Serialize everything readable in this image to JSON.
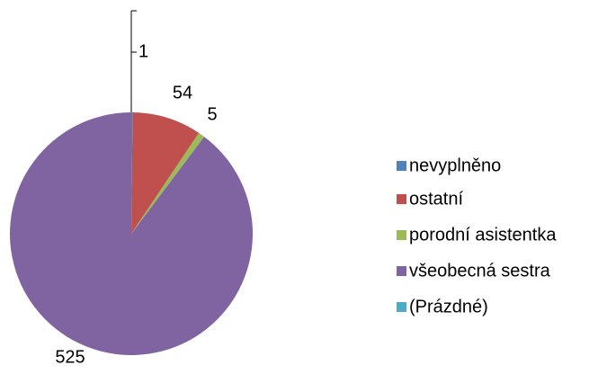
{
  "chart_data": {
    "type": "pie",
    "categories": [
      "nevyplněno",
      "ostatní",
      "porodní asistentka",
      "všeobecná sestra",
      "(Prázdné)"
    ],
    "values": [
      1,
      54,
      5,
      525,
      null
    ],
    "colors": [
      "#4f81bd",
      "#c0504d",
      "#9bbb59",
      "#8064a2",
      "#4bacc6"
    ],
    "legend": "right"
  }
}
